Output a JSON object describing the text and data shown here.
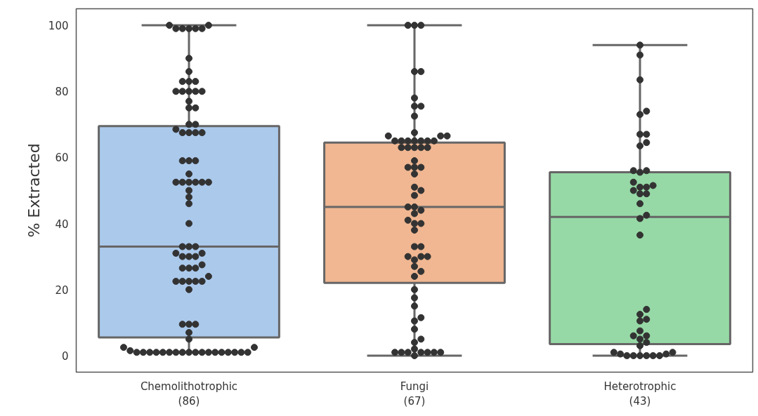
{
  "chart_data": {
    "type": "box",
    "ylabel": "% Extracted",
    "categories": [
      "Chemolithotrophic\n(86)",
      "Fungi\n(67)",
      "Heterotrophic\n(43)"
    ],
    "colors": [
      "#abc9eb",
      "#f0b792",
      "#96d9a6"
    ],
    "boxes": [
      {
        "low": 1,
        "q1": 5.5,
        "median": 33,
        "q3": 69.5,
        "high": 100
      },
      {
        "low": 0,
        "q1": 22,
        "median": 45,
        "q3": 64.5,
        "high": 100
      },
      {
        "low": 0,
        "q1": 3.5,
        "median": 42,
        "q3": 55.5,
        "high": 94
      }
    ],
    "ylim": [
      -5,
      105
    ],
    "yticks": [
      0,
      20,
      40,
      60,
      80,
      100
    ],
    "marker": "circle",
    "series": [
      {
        "type": "scatter",
        "color": "#333333",
        "x": [
          "Chemolithotrophic\n(86)",
          "Chemolithotrophic\n(86)",
          "Chemolithotrophic\n(86)",
          "Chemolithotrophic\n(86)",
          "Chemolithotrophic\n(86)",
          "Chemolithotrophic\n(86)",
          "Chemolithotrophic\n(86)",
          "Chemolithotrophic\n(86)",
          "Chemolithotrophic\n(86)",
          "Chemolithotrophic\n(86)",
          "Chemolithotrophic\n(86)",
          "Chemolithotrophic\n(86)",
          "Chemolithotrophic\n(86)",
          "Chemolithotrophic\n(86)",
          "Chemolithotrophic\n(86)",
          "Chemolithotrophic\n(86)",
          "Chemolithotrophic\n(86)",
          "Chemolithotrophic\n(86)",
          "Chemolithotrophic\n(86)",
          "Chemolithotrophic\n(86)",
          "Chemolithotrophic\n(86)",
          "Chemolithotrophic\n(86)",
          "Chemolithotrophic\n(86)",
          "Chemolithotrophic\n(86)",
          "Chemolithotrophic\n(86)",
          "Chemolithotrophic\n(86)",
          "Chemolithotrophic\n(86)",
          "Chemolithotrophic\n(86)",
          "Chemolithotrophic\n(86)",
          "Chemolithotrophic\n(86)",
          "Chemolithotrophic\n(86)",
          "Chemolithotrophic\n(86)",
          "Chemolithotrophic\n(86)",
          "Chemolithotrophic\n(86)",
          "Chemolithotrophic\n(86)",
          "Chemolithotrophic\n(86)",
          "Chemolithotrophic\n(86)",
          "Chemolithotrophic\n(86)",
          "Chemolithotrophic\n(86)",
          "Chemolithotrophic\n(86)",
          "Chemolithotrophic\n(86)",
          "Chemolithotrophic\n(86)",
          "Chemolithotrophic\n(86)",
          "Chemolithotrophic\n(86)",
          "Chemolithotrophic\n(86)",
          "Chemolithotrophic\n(86)",
          "Chemolithotrophic\n(86)",
          "Chemolithotrophic\n(86)",
          "Chemolithotrophic\n(86)",
          "Chemolithotrophic\n(86)",
          "Chemolithotrophic\n(86)",
          "Chemolithotrophic\n(86)",
          "Chemolithotrophic\n(86)",
          "Chemolithotrophic\n(86)",
          "Chemolithotrophic\n(86)",
          "Chemolithotrophic\n(86)",
          "Chemolithotrophic\n(86)",
          "Chemolithotrophic\n(86)",
          "Chemolithotrophic\n(86)",
          "Chemolithotrophic\n(86)",
          "Chemolithotrophic\n(86)",
          "Chemolithotrophic\n(86)",
          "Chemolithotrophic\n(86)",
          "Chemolithotrophic\n(86)",
          "Chemolithotrophic\n(86)",
          "Chemolithotrophic\n(86)",
          "Chemolithotrophic\n(86)",
          "Chemolithotrophic\n(86)",
          "Chemolithotrophic\n(86)",
          "Chemolithotrophic\n(86)",
          "Chemolithotrophic\n(86)",
          "Chemolithotrophic\n(86)",
          "Chemolithotrophic\n(86)",
          "Chemolithotrophic\n(86)",
          "Chemolithotrophic\n(86)",
          "Chemolithotrophic\n(86)",
          "Chemolithotrophic\n(86)",
          "Chemolithotrophic\n(86)",
          "Chemolithotrophic\n(86)",
          "Chemolithotrophic\n(86)",
          "Chemolithotrophic\n(86)",
          "Chemolithotrophic\n(86)",
          "Chemolithotrophic\n(86)",
          "Chemolithotrophic\n(86)",
          "Chemolithotrophic\n(86)",
          "Chemolithotrophic\n(86)"
        ],
        "values": [
          100,
          100,
          99,
          99,
          99,
          99,
          99,
          90,
          86,
          83,
          83,
          83,
          80,
          80,
          80,
          80,
          80,
          77,
          75,
          75,
          70,
          70,
          68.5,
          67.5,
          67.5,
          67.5,
          67.5,
          59,
          59,
          59,
          55,
          52.5,
          52.5,
          52.5,
          52.5,
          52.5,
          52.5,
          50,
          48,
          46,
          40,
          33,
          33,
          33,
          31,
          31,
          30,
          30,
          30,
          27.5,
          26.5,
          26.5,
          26.5,
          24,
          22.5,
          22.5,
          22.5,
          22.5,
          22.5,
          20,
          9.5,
          9.5,
          9.5,
          7,
          5,
          2.5,
          2.5,
          1.5,
          1,
          1,
          1,
          1,
          1,
          1,
          1,
          1,
          1,
          1,
          1,
          1,
          1,
          1,
          1,
          1,
          1,
          1
        ]
      },
      {
        "type": "scatter",
        "color": "#333333",
        "x": [
          "Fungi\n(67)",
          "Fungi\n(67)",
          "Fungi\n(67)",
          "Fungi\n(67)",
          "Fungi\n(67)",
          "Fungi\n(67)",
          "Fungi\n(67)",
          "Fungi\n(67)",
          "Fungi\n(67)",
          "Fungi\n(67)",
          "Fungi\n(67)",
          "Fungi\n(67)",
          "Fungi\n(67)",
          "Fungi\n(67)",
          "Fungi\n(67)",
          "Fungi\n(67)",
          "Fungi\n(67)",
          "Fungi\n(67)",
          "Fungi\n(67)",
          "Fungi\n(67)",
          "Fungi\n(67)",
          "Fungi\n(67)",
          "Fungi\n(67)",
          "Fungi\n(67)",
          "Fungi\n(67)",
          "Fungi\n(67)",
          "Fungi\n(67)",
          "Fungi\n(67)",
          "Fungi\n(67)",
          "Fungi\n(67)",
          "Fungi\n(67)",
          "Fungi\n(67)",
          "Fungi\n(67)",
          "Fungi\n(67)",
          "Fungi\n(67)",
          "Fungi\n(67)",
          "Fungi\n(67)",
          "Fungi\n(67)",
          "Fungi\n(67)",
          "Fungi\n(67)",
          "Fungi\n(67)",
          "Fungi\n(67)",
          "Fungi\n(67)",
          "Fungi\n(67)",
          "Fungi\n(67)",
          "Fungi\n(67)",
          "Fungi\n(67)",
          "Fungi\n(67)",
          "Fungi\n(67)",
          "Fungi\n(67)",
          "Fungi\n(67)",
          "Fungi\n(67)",
          "Fungi\n(67)",
          "Fungi\n(67)",
          "Fungi\n(67)",
          "Fungi\n(67)",
          "Fungi\n(67)",
          "Fungi\n(67)",
          "Fungi\n(67)",
          "Fungi\n(67)",
          "Fungi\n(67)",
          "Fungi\n(67)",
          "Fungi\n(67)",
          "Fungi\n(67)",
          "Fungi\n(67)",
          "Fungi\n(67)",
          "Fungi\n(67)"
        ],
        "values": [
          100,
          100,
          100,
          86,
          86,
          78,
          75.5,
          75.5,
          72.5,
          67.5,
          66.5,
          66.5,
          66.5,
          65,
          65,
          65,
          65,
          65,
          65,
          65,
          63,
          63,
          63,
          63,
          63,
          59,
          57,
          57,
          57,
          55,
          51,
          50,
          48.5,
          45,
          45,
          44,
          43,
          41,
          40,
          40,
          38,
          33,
          33,
          30,
          30,
          30,
          29,
          27,
          25.5,
          24,
          20,
          17.5,
          15,
          11.5,
          10.5,
          8,
          5,
          4,
          2,
          1,
          1,
          1,
          1,
          1,
          1,
          1,
          0
        ]
      },
      {
        "type": "scatter",
        "color": "#333333",
        "x": [
          "Heterotrophic\n(43)",
          "Heterotrophic\n(43)",
          "Heterotrophic\n(43)",
          "Heterotrophic\n(43)",
          "Heterotrophic\n(43)",
          "Heterotrophic\n(43)",
          "Heterotrophic\n(43)",
          "Heterotrophic\n(43)",
          "Heterotrophic\n(43)",
          "Heterotrophic\n(43)",
          "Heterotrophic\n(43)",
          "Heterotrophic\n(43)",
          "Heterotrophic\n(43)",
          "Heterotrophic\n(43)",
          "Heterotrophic\n(43)",
          "Heterotrophic\n(43)",
          "Heterotrophic\n(43)",
          "Heterotrophic\n(43)",
          "Heterotrophic\n(43)",
          "Heterotrophic\n(43)",
          "Heterotrophic\n(43)",
          "Heterotrophic\n(43)",
          "Heterotrophic\n(43)",
          "Heterotrophic\n(43)",
          "Heterotrophic\n(43)",
          "Heterotrophic\n(43)",
          "Heterotrophic\n(43)",
          "Heterotrophic\n(43)",
          "Heterotrophic\n(43)",
          "Heterotrophic\n(43)",
          "Heterotrophic\n(43)",
          "Heterotrophic\n(43)",
          "Heterotrophic\n(43)",
          "Heterotrophic\n(43)",
          "Heterotrophic\n(43)",
          "Heterotrophic\n(43)",
          "Heterotrophic\n(43)",
          "Heterotrophic\n(43)",
          "Heterotrophic\n(43)",
          "Heterotrophic\n(43)",
          "Heterotrophic\n(43)",
          "Heterotrophic\n(43)",
          "Heterotrophic\n(43)"
        ],
        "values": [
          94,
          91,
          83.5,
          74,
          73,
          67,
          67,
          64.5,
          63.5,
          56,
          56,
          55.5,
          52.5,
          51,
          51,
          51.5,
          50,
          49,
          49,
          46,
          42.5,
          41.5,
          36.5,
          14,
          12.5,
          11,
          10.5,
          7.5,
          6,
          6,
          5,
          4,
          3,
          1,
          1,
          0.5,
          0.5,
          0,
          0,
          0,
          0,
          0,
          0
        ]
      }
    ]
  }
}
